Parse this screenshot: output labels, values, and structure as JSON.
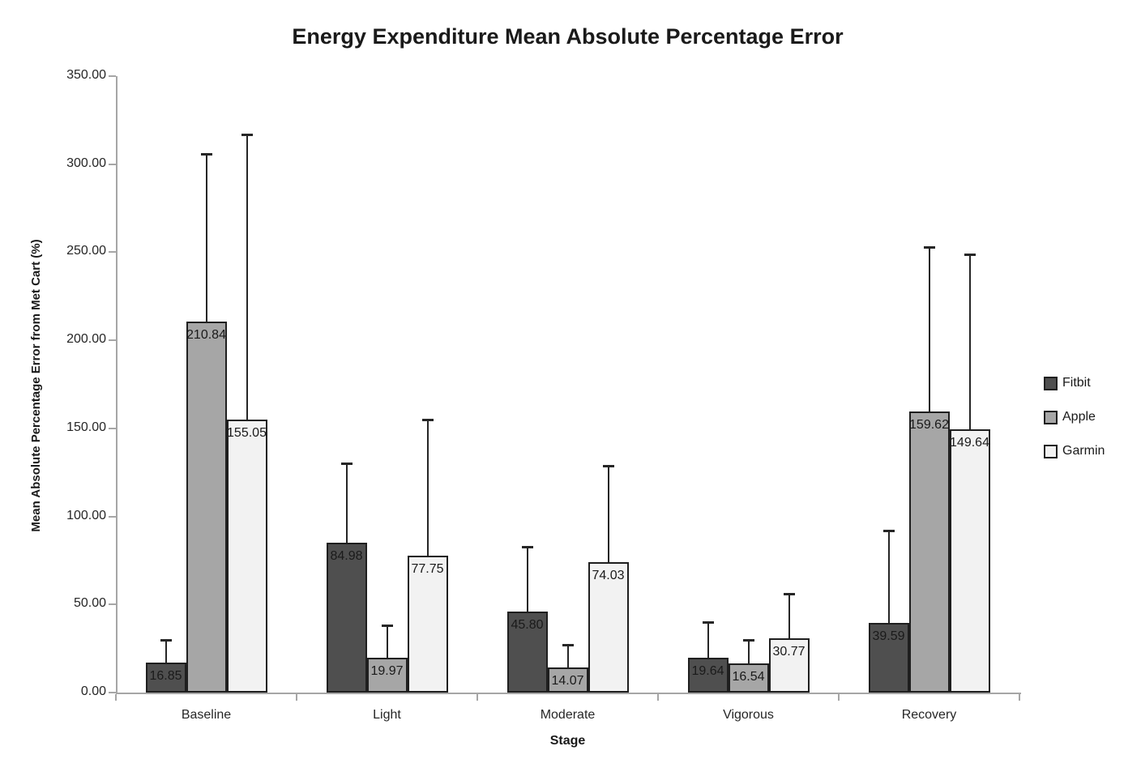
{
  "chart_data": {
    "type": "bar",
    "title": "Energy Expenditure Mean Absolute Percentage Error",
    "xlabel": "Stage",
    "ylabel": "Mean Absolute Percentage Error from Met Cart (%)",
    "ylim": [
      0,
      350
    ],
    "ytick_step": 50,
    "ytick_decimals": 2,
    "grid": false,
    "legend_position": "right",
    "data_labels": "inside_end",
    "error_bars": "upper_only",
    "categories": [
      "Baseline",
      "Light",
      "Moderate",
      "Vigorous",
      "Recovery"
    ],
    "series": [
      {
        "name": "Fitbit",
        "color": "#4F4F4F",
        "values": [
          16.85,
          84.98,
          45.8,
          19.64,
          39.59
        ],
        "error_bar_tops": [
          30,
          130,
          83,
          40,
          92
        ]
      },
      {
        "name": "Apple",
        "color": "#A6A6A6",
        "values": [
          210.84,
          19.97,
          14.07,
          16.54,
          159.62
        ],
        "error_bar_tops": [
          306,
          38,
          27,
          30,
          253
        ]
      },
      {
        "name": "Garmin",
        "color": "#F2F2F2",
        "values": [
          155.05,
          77.75,
          74.03,
          30.77,
          149.64
        ],
        "error_bar_tops": [
          317,
          155,
          129,
          56,
          249
        ]
      }
    ]
  }
}
